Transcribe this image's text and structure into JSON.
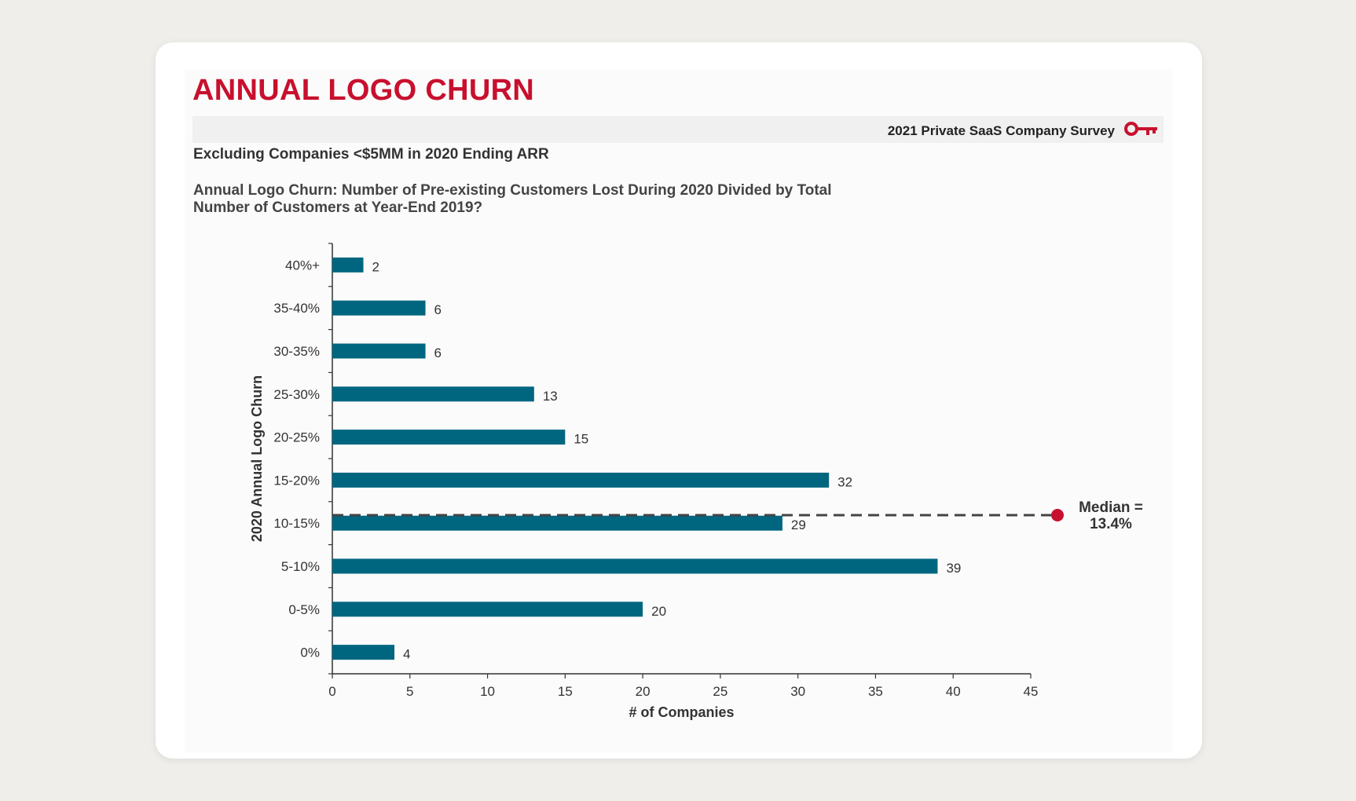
{
  "header": {
    "title": "ANNUAL LOGO CHURN",
    "survey_label": "2021 Private SaaS Company Survey",
    "subtitle": "Excluding Companies <$5MM in 2020 Ending ARR",
    "question_line1": "Annual Logo Churn: Number of Pre-existing Customers Lost During 2020 Divided by Total",
    "question_line2": "Number of Customers at Year-End 2019?"
  },
  "colors": {
    "bar": "#006680",
    "title": "#c8102e",
    "median": "#c8102e"
  },
  "chart_data": {
    "type": "bar",
    "orientation": "horizontal",
    "categories": [
      "40%+",
      "35-40%",
      "30-35%",
      "25-30%",
      "20-25%",
      "15-20%",
      "10-15%",
      "5-10%",
      "0-5%",
      "0%"
    ],
    "values": [
      2,
      6,
      6,
      13,
      15,
      32,
      29,
      39,
      20,
      4
    ],
    "xlabel": "# of Companies",
    "ylabel": "2020 Annual Logo Churn",
    "xlim": [
      0,
      45
    ],
    "xticks": [
      0,
      5,
      10,
      15,
      20,
      25,
      30,
      35,
      40,
      45
    ],
    "median": {
      "line1": "Median =",
      "line2": "13.4%",
      "value": 13.4
    }
  }
}
